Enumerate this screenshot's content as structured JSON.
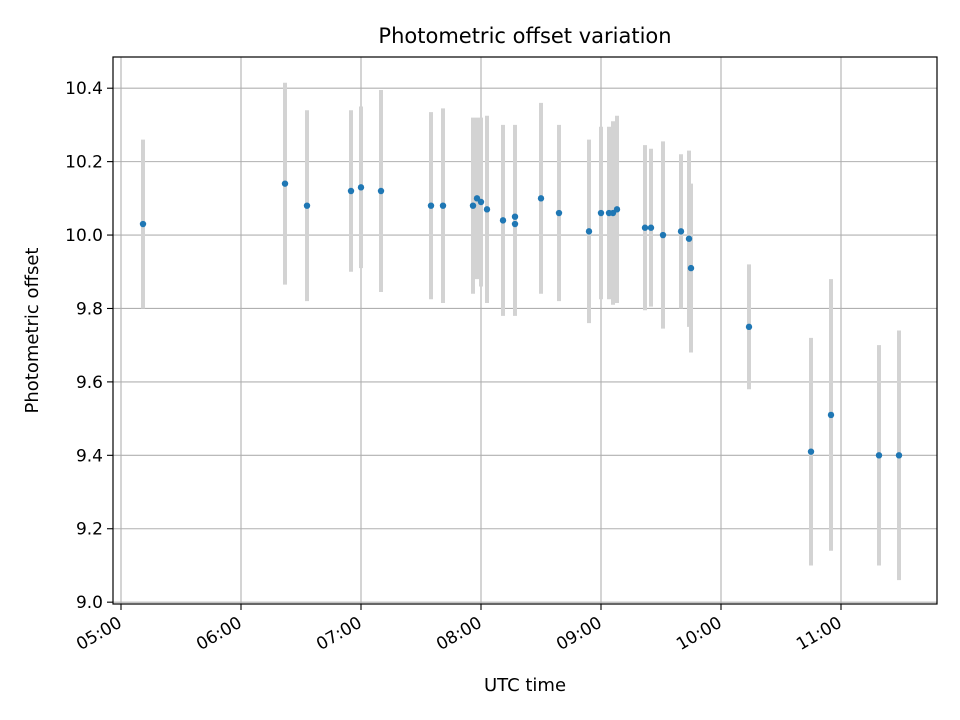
{
  "chart_data": {
    "type": "scatter",
    "title": "Photometric offset variation",
    "xlabel": "UTC time",
    "ylabel": "Photometric offset",
    "xlim": [
      "04:56",
      "11:48"
    ],
    "ylim": [
      8.995,
      10.485
    ],
    "x_ticks": [
      "05:00",
      "06:00",
      "07:00",
      "08:00",
      "09:00",
      "10:00",
      "11:00"
    ],
    "y_ticks": [
      9.0,
      9.2,
      9.4,
      9.6,
      9.8,
      10.0,
      10.2,
      10.4
    ],
    "y_tick_labels": [
      "9.0",
      "9.2",
      "9.4",
      "9.6",
      "9.8",
      "10.0",
      "10.2",
      "10.4"
    ],
    "grid": true,
    "colors": {
      "points": "#1f77b4",
      "errorbars": "#d3d3d3",
      "grid": "#b0b0b0"
    },
    "points": [
      {
        "t": "05:11",
        "y": 10.03,
        "err": 0.23
      },
      {
        "t": "06:22",
        "y": 10.14,
        "err": 0.275
      },
      {
        "t": "06:33",
        "y": 10.08,
        "err": 0.26
      },
      {
        "t": "06:55",
        "y": 10.12,
        "err": 0.22
      },
      {
        "t": "07:00",
        "y": 10.13,
        "err": 0.22
      },
      {
        "t": "07:10",
        "y": 10.12,
        "err": 0.275
      },
      {
        "t": "07:35",
        "y": 10.08,
        "err": 0.255
      },
      {
        "t": "07:41",
        "y": 10.08,
        "err": 0.265
      },
      {
        "t": "07:56",
        "y": 10.08,
        "err": 0.24
      },
      {
        "t": "07:58",
        "y": 10.1,
        "err": 0.22
      },
      {
        "t": "08:00",
        "y": 10.09,
        "err": 0.23
      },
      {
        "t": "08:03",
        "y": 10.07,
        "err": 0.255
      },
      {
        "t": "08:11",
        "y": 10.04,
        "err": 0.26
      },
      {
        "t": "08:17",
        "y": 10.05,
        "err": 0.25
      },
      {
        "t": "08:17",
        "y": 10.03,
        "err": 0.25
      },
      {
        "t": "08:30",
        "y": 10.1,
        "err": 0.26
      },
      {
        "t": "08:39",
        "y": 10.06,
        "err": 0.24
      },
      {
        "t": "08:54",
        "y": 10.01,
        "err": 0.25
      },
      {
        "t": "09:00",
        "y": 10.06,
        "err": 0.235
      },
      {
        "t": "09:04",
        "y": 10.06,
        "err": 0.235
      },
      {
        "t": "09:06",
        "y": 10.06,
        "err": 0.25
      },
      {
        "t": "09:08",
        "y": 10.07,
        "err": 0.255
      },
      {
        "t": "09:22",
        "y": 10.02,
        "err": 0.225
      },
      {
        "t": "09:25",
        "y": 10.02,
        "err": 0.215
      },
      {
        "t": "09:31",
        "y": 10.0,
        "err": 0.255
      },
      {
        "t": "09:40",
        "y": 10.01,
        "err": 0.21
      },
      {
        "t": "09:44",
        "y": 9.99,
        "err": 0.24
      },
      {
        "t": "09:45",
        "y": 9.91,
        "err": 0.23
      },
      {
        "t": "10:14",
        "y": 9.75,
        "err": 0.17
      },
      {
        "t": "10:45",
        "y": 9.41,
        "err": 0.31
      },
      {
        "t": "10:55",
        "y": 9.51,
        "err": 0.37
      },
      {
        "t": "11:19",
        "y": 9.4,
        "err": 0.3
      },
      {
        "t": "11:29",
        "y": 9.4,
        "err": 0.34
      }
    ]
  }
}
